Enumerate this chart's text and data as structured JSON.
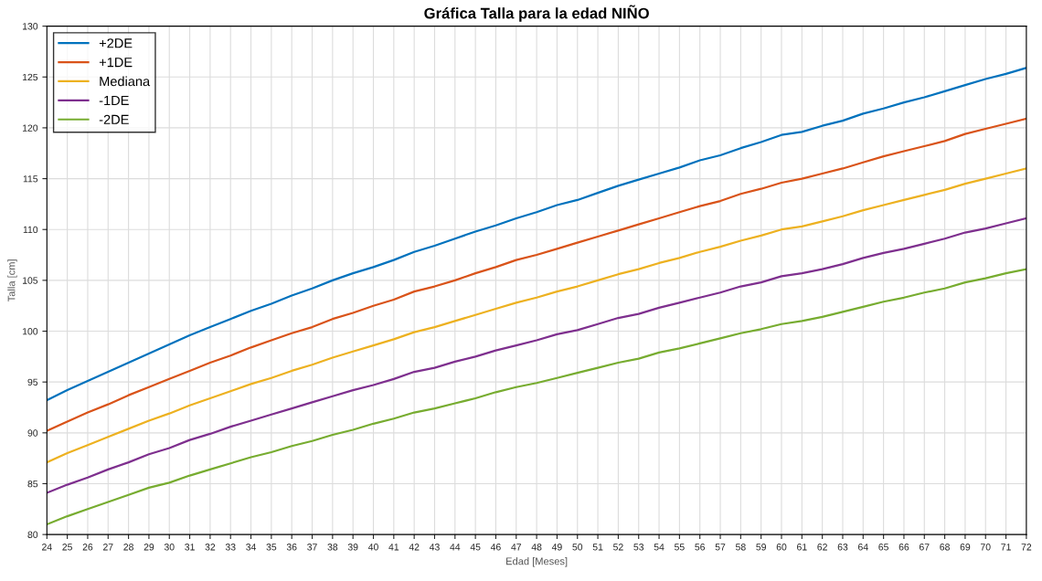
{
  "chart_data": {
    "type": "line",
    "title": "Gráfica Talla para la edad NIÑO",
    "xlabel": "Edad [Meses]",
    "ylabel": "Talla [cm]",
    "x": [
      24,
      25,
      26,
      27,
      28,
      29,
      30,
      31,
      32,
      33,
      34,
      35,
      36,
      37,
      38,
      39,
      40,
      41,
      42,
      43,
      44,
      45,
      46,
      47,
      48,
      49,
      50,
      51,
      52,
      53,
      54,
      55,
      56,
      57,
      58,
      59,
      60,
      61,
      62,
      63,
      64,
      65,
      66,
      67,
      68,
      69,
      70,
      71,
      72
    ],
    "series": [
      {
        "name": "+2DE",
        "color": "#0072bd",
        "values": [
          93.2,
          94.2,
          95.1,
          96.0,
          96.9,
          97.8,
          98.7,
          99.6,
          100.4,
          101.2,
          102.0,
          102.7,
          103.5,
          104.2,
          105.0,
          105.7,
          106.3,
          107.0,
          107.8,
          108.4,
          109.1,
          109.8,
          110.4,
          111.1,
          111.7,
          112.4,
          112.9,
          113.6,
          114.3,
          114.9,
          115.5,
          116.1,
          116.8,
          117.3,
          118.0,
          118.6,
          119.3,
          119.6,
          120.2,
          120.7,
          121.4,
          121.9,
          122.5,
          123.0,
          123.6,
          124.2,
          124.8,
          125.3,
          125.9
        ]
      },
      {
        "name": "+1DE",
        "color": "#d95319",
        "values": [
          90.2,
          91.1,
          92.0,
          92.8,
          93.7,
          94.5,
          95.3,
          96.1,
          96.9,
          97.6,
          98.4,
          99.1,
          99.8,
          100.4,
          101.2,
          101.8,
          102.5,
          103.1,
          103.9,
          104.4,
          105.0,
          105.7,
          106.3,
          107.0,
          107.5,
          108.1,
          108.7,
          109.3,
          109.9,
          110.5,
          111.1,
          111.7,
          112.3,
          112.8,
          113.5,
          114.0,
          114.6,
          115.0,
          115.5,
          116.0,
          116.6,
          117.2,
          117.7,
          118.2,
          118.7,
          119.4,
          119.9,
          120.4,
          120.9
        ]
      },
      {
        "name": "Mediana",
        "color": "#edb120",
        "values": [
          87.1,
          88.0,
          88.8,
          89.6,
          90.4,
          91.2,
          91.9,
          92.7,
          93.4,
          94.1,
          94.8,
          95.4,
          96.1,
          96.7,
          97.4,
          98.0,
          98.6,
          99.2,
          99.9,
          100.4,
          101.0,
          101.6,
          102.2,
          102.8,
          103.3,
          103.9,
          104.4,
          105.0,
          105.6,
          106.1,
          106.7,
          107.2,
          107.8,
          108.3,
          108.9,
          109.4,
          110.0,
          110.3,
          110.8,
          111.3,
          111.9,
          112.4,
          112.9,
          113.4,
          113.9,
          114.5,
          115.0,
          115.5,
          116.0
        ]
      },
      {
        "name": "-1DE",
        "color": "#7e2f8e",
        "values": [
          84.1,
          84.9,
          85.6,
          86.4,
          87.1,
          87.9,
          88.5,
          89.3,
          89.9,
          90.6,
          91.2,
          91.8,
          92.4,
          93.0,
          93.6,
          94.2,
          94.7,
          95.3,
          96.0,
          96.4,
          97.0,
          97.5,
          98.1,
          98.6,
          99.1,
          99.7,
          100.1,
          100.7,
          101.3,
          101.7,
          102.3,
          102.8,
          103.3,
          103.8,
          104.4,
          104.8,
          105.4,
          105.7,
          106.1,
          106.6,
          107.2,
          107.7,
          108.1,
          108.6,
          109.1,
          109.7,
          110.1,
          110.6,
          111.1
        ]
      },
      {
        "name": "-2DE",
        "color": "#77ac30",
        "values": [
          81.0,
          81.8,
          82.5,
          83.2,
          83.9,
          84.6,
          85.1,
          85.8,
          86.4,
          87.0,
          87.6,
          88.1,
          88.7,
          89.2,
          89.8,
          90.3,
          90.9,
          91.4,
          92.0,
          92.4,
          92.9,
          93.4,
          94.0,
          94.5,
          94.9,
          95.4,
          95.9,
          96.4,
          96.9,
          97.3,
          97.9,
          98.3,
          98.8,
          99.3,
          99.8,
          100.2,
          100.7,
          101.0,
          101.4,
          101.9,
          102.4,
          102.9,
          103.3,
          103.8,
          104.2,
          104.8,
          105.2,
          105.7,
          106.1
        ]
      }
    ],
    "xlim": [
      24,
      72
    ],
    "xticks": [
      24,
      25,
      26,
      27,
      28,
      29,
      30,
      31,
      32,
      33,
      34,
      35,
      36,
      37,
      38,
      39,
      40,
      41,
      42,
      43,
      44,
      45,
      46,
      47,
      48,
      49,
      50,
      51,
      52,
      53,
      54,
      55,
      56,
      57,
      58,
      59,
      60,
      61,
      62,
      63,
      64,
      65,
      66,
      67,
      68,
      69,
      70,
      71,
      72
    ],
    "ylim": [
      80,
      130
    ],
    "yticks": [
      80,
      85,
      90,
      95,
      100,
      105,
      110,
      115,
      120,
      125,
      130
    ],
    "grid": true,
    "legend": "top left",
    "marker": "none",
    "line_style": "solid"
  }
}
